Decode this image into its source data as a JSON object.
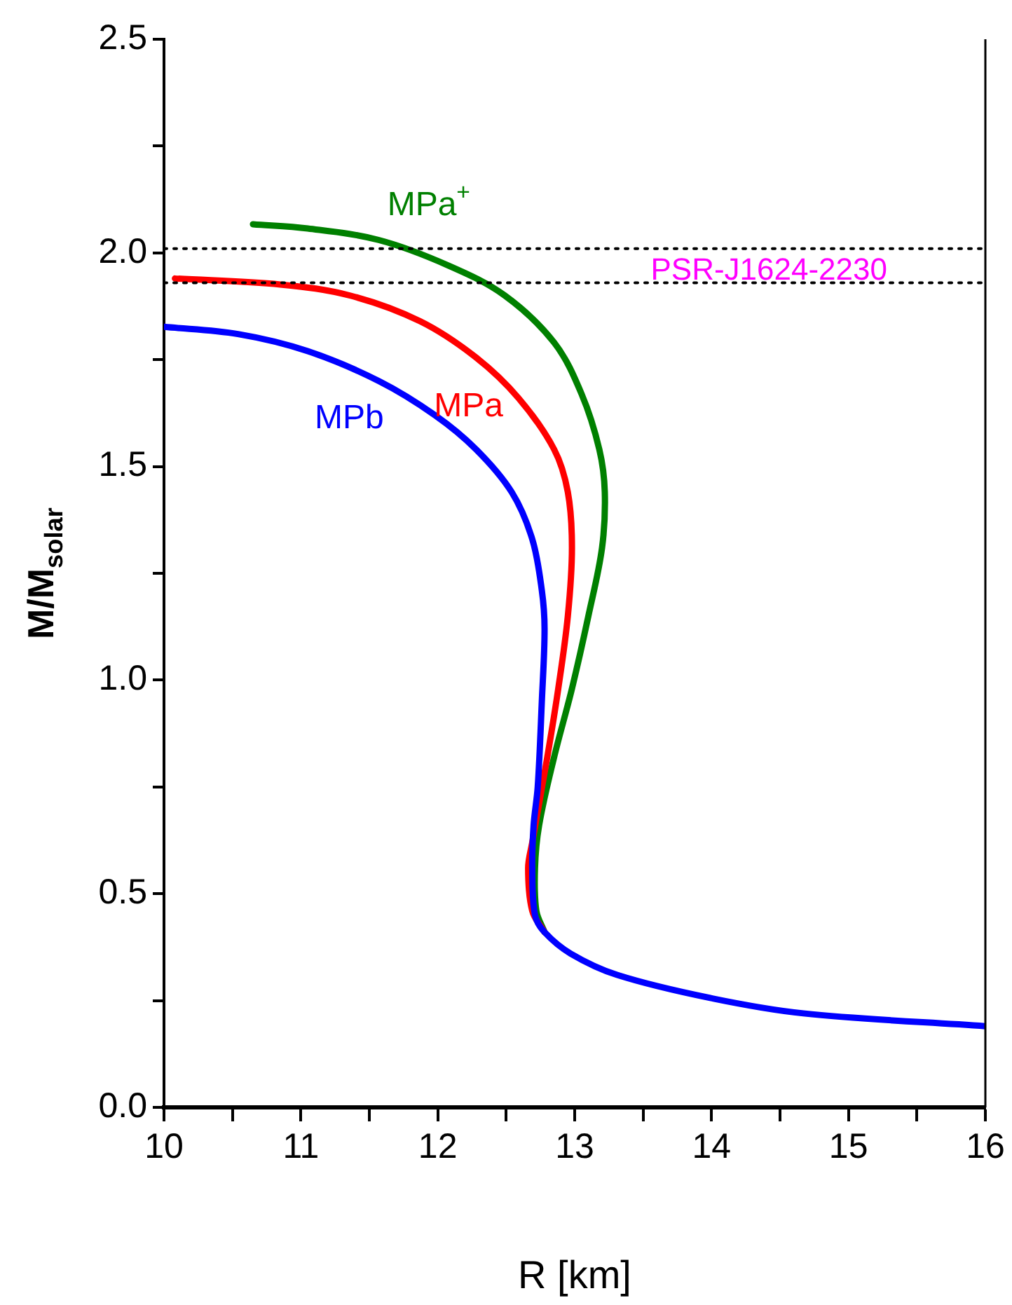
{
  "chart_data": {
    "type": "line",
    "xlabel": "R [km]",
    "ylabel": "M/M$_{solar}$",
    "xlim": [
      10,
      16
    ],
    "ylim": [
      0,
      2.5
    ],
    "xticks": [
      10,
      {
        "value": 10.5,
        "label": null
      },
      11,
      {
        "value": 11.5,
        "label": null
      },
      12,
      {
        "value": 12.5,
        "label": null
      },
      13,
      {
        "value": 13.5,
        "label": null
      },
      14,
      {
        "value": 14.5,
        "label": null
      },
      15,
      {
        "value": 15.5,
        "label": null
      },
      16
    ],
    "yticks": [
      {
        "value": 0,
        "label": "0.0"
      },
      {
        "value": 0.25,
        "label": null
      },
      {
        "value": 0.5,
        "label": "0.5"
      },
      {
        "value": 0.75,
        "label": null
      },
      {
        "value": 1,
        "label": "1.0"
      },
      {
        "value": 1.25,
        "label": null
      },
      {
        "value": 1.5,
        "label": "1.5"
      },
      {
        "value": 1.75,
        "label": null
      },
      {
        "value": 2,
        "label": "2.0"
      },
      {
        "value": 2.25,
        "label": null
      },
      {
        "value": 2.5,
        "label": "2.5"
      }
    ],
    "grid": false,
    "legend": false,
    "marker": "none",
    "line_style": "solid",
    "series": [
      {
        "name": "MPa$^{+}$",
        "color": "#008000",
        "x": [
          10.65,
          11.05,
          11.57,
          12.08,
          12.49,
          12.85,
          13.05,
          13.18,
          13.22,
          13.2,
          13.1,
          12.98,
          12.85,
          12.74,
          12.71,
          12.72,
          12.78
        ],
        "values": [
          2.067,
          2.057,
          2.03,
          1.97,
          1.9,
          1.79,
          1.67,
          1.54,
          1.44,
          1.31,
          1.15,
          0.98,
          0.82,
          0.66,
          0.56,
          0.46,
          0.41
        ]
      },
      {
        "name": "MPa",
        "color": "#ff0000",
        "x": [
          10.08,
          10.85,
          11.36,
          11.87,
          12.28,
          12.59,
          12.85,
          12.95,
          12.98,
          12.95,
          12.88,
          12.8,
          12.69,
          12.66,
          12.69,
          12.78
        ],
        "values": [
          1.94,
          1.926,
          1.9,
          1.84,
          1.755,
          1.66,
          1.54,
          1.44,
          1.31,
          1.15,
          0.98,
          0.82,
          0.62,
          0.56,
          0.46,
          0.41
        ]
      },
      {
        "name": "MPb",
        "color": "#0000ff",
        "x": [
          10,
          10.54,
          11.05,
          11.57,
          11.98,
          12.28,
          12.54,
          12.69,
          12.76,
          12.78,
          12.76,
          12.73,
          12.7,
          12.69,
          12.71,
          12.78,
          12.97,
          13.31,
          13.99,
          14.67,
          16
        ],
        "values": [
          1.827,
          1.81,
          1.77,
          1.7,
          1.62,
          1.54,
          1.44,
          1.33,
          1.21,
          1.12,
          0.95,
          0.75,
          0.66,
          0.56,
          0.45,
          0.41,
          0.36,
          0.31,
          0.256,
          0.22,
          0.19
        ]
      }
    ],
    "ref_lines": [
      {
        "axis": "y",
        "value": 2.01,
        "line_style": "dotted",
        "color": "#000000"
      },
      {
        "axis": "y",
        "value": 1.93,
        "line_style": "dotted",
        "color": "#000000"
      }
    ],
    "annotations": [
      "PSR-J1624-2230"
    ]
  }
}
